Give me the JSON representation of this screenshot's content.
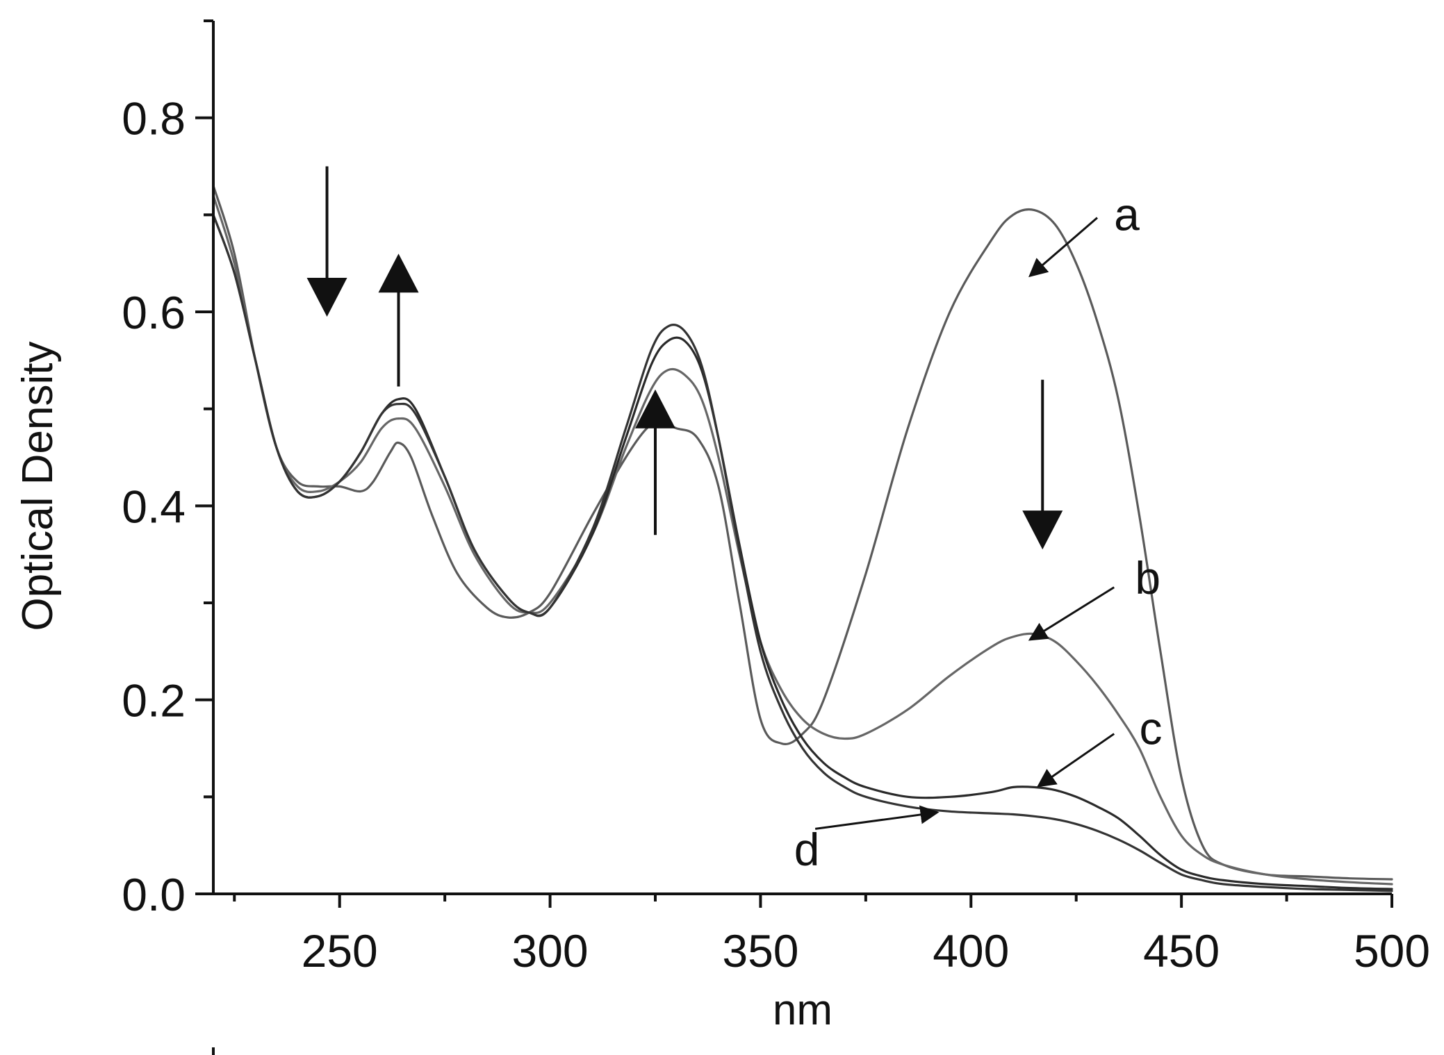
{
  "chart_data": {
    "type": "line",
    "title": "",
    "xlabel": "nm",
    "ylabel": "Optical Density",
    "xlim": [
      220,
      500
    ],
    "ylim": [
      0.0,
      0.9
    ],
    "x_ticks": [
      250,
      300,
      350,
      400,
      450,
      500
    ],
    "x_tick_labels": [
      "250",
      "300",
      "350",
      "400",
      "450",
      "500"
    ],
    "y_ticks": [
      0.0,
      0.2,
      0.4,
      0.6,
      0.8
    ],
    "y_tick_labels": [
      "0.0",
      "0.2",
      "0.4",
      "0.6",
      "0.8"
    ],
    "grid": false,
    "colors": {
      "axis": "#111111",
      "curve_dark": "#222222",
      "curve_mid": "#555555",
      "curve_light": "#6a6a6a"
    },
    "series": [
      {
        "name": "a",
        "label": "a",
        "color": "#5a5a5a",
        "points": [
          [
            220,
            0.73
          ],
          [
            225,
            0.66
          ],
          [
            230,
            0.55
          ],
          [
            235,
            0.46
          ],
          [
            240,
            0.425
          ],
          [
            245,
            0.42
          ],
          [
            250,
            0.42
          ],
          [
            255,
            0.415
          ],
          [
            258,
            0.425
          ],
          [
            262,
            0.455
          ],
          [
            264,
            0.465
          ],
          [
            267,
            0.45
          ],
          [
            272,
            0.39
          ],
          [
            278,
            0.33
          ],
          [
            285,
            0.295
          ],
          [
            290,
            0.285
          ],
          [
            295,
            0.29
          ],
          [
            300,
            0.31
          ],
          [
            310,
            0.39
          ],
          [
            318,
            0.45
          ],
          [
            323,
            0.48
          ],
          [
            326,
            0.485
          ],
          [
            330,
            0.48
          ],
          [
            335,
            0.47
          ],
          [
            340,
            0.42
          ],
          [
            345,
            0.3
          ],
          [
            350,
            0.18
          ],
          [
            355,
            0.155
          ],
          [
            360,
            0.165
          ],
          [
            365,
            0.2
          ],
          [
            375,
            0.33
          ],
          [
            385,
            0.48
          ],
          [
            395,
            0.6
          ],
          [
            405,
            0.675
          ],
          [
            410,
            0.7
          ],
          [
            415,
            0.705
          ],
          [
            420,
            0.69
          ],
          [
            425,
            0.65
          ],
          [
            430,
            0.59
          ],
          [
            435,
            0.51
          ],
          [
            440,
            0.39
          ],
          [
            445,
            0.25
          ],
          [
            450,
            0.12
          ],
          [
            455,
            0.05
          ],
          [
            460,
            0.03
          ],
          [
            470,
            0.02
          ],
          [
            480,
            0.018
          ],
          [
            490,
            0.016
          ],
          [
            500,
            0.015
          ]
        ],
        "label_anchor": [
          432,
          0.7
        ],
        "pointer_from": [
          430,
          0.697
        ],
        "pointer_to": [
          414,
          0.637
        ]
      },
      {
        "name": "b",
        "label": "b",
        "color": "#666666",
        "points": [
          [
            220,
            0.72
          ],
          [
            225,
            0.65
          ],
          [
            230,
            0.55
          ],
          [
            235,
            0.46
          ],
          [
            240,
            0.42
          ],
          [
            245,
            0.415
          ],
          [
            250,
            0.425
          ],
          [
            255,
            0.445
          ],
          [
            260,
            0.48
          ],
          [
            264,
            0.49
          ],
          [
            268,
            0.48
          ],
          [
            275,
            0.42
          ],
          [
            282,
            0.35
          ],
          [
            290,
            0.3
          ],
          [
            295,
            0.29
          ],
          [
            300,
            0.3
          ],
          [
            310,
            0.37
          ],
          [
            318,
            0.46
          ],
          [
            324,
            0.52
          ],
          [
            328,
            0.54
          ],
          [
            332,
            0.535
          ],
          [
            336,
            0.51
          ],
          [
            340,
            0.45
          ],
          [
            345,
            0.35
          ],
          [
            350,
            0.26
          ],
          [
            355,
            0.21
          ],
          [
            360,
            0.18
          ],
          [
            365,
            0.165
          ],
          [
            370,
            0.16
          ],
          [
            375,
            0.165
          ],
          [
            385,
            0.19
          ],
          [
            395,
            0.225
          ],
          [
            405,
            0.255
          ],
          [
            410,
            0.265
          ],
          [
            415,
            0.268
          ],
          [
            420,
            0.26
          ],
          [
            425,
            0.24
          ],
          [
            430,
            0.215
          ],
          [
            435,
            0.185
          ],
          [
            440,
            0.15
          ],
          [
            445,
            0.1
          ],
          [
            450,
            0.06
          ],
          [
            455,
            0.04
          ],
          [
            460,
            0.03
          ],
          [
            470,
            0.02
          ],
          [
            480,
            0.015
          ],
          [
            490,
            0.012
          ],
          [
            500,
            0.01
          ]
        ],
        "label_anchor": [
          437,
          0.325
        ],
        "pointer_from": [
          434,
          0.316
        ],
        "pointer_to": [
          414,
          0.262
        ]
      },
      {
        "name": "c",
        "label": "c",
        "color": "#2a2a2a",
        "points": [
          [
            220,
            0.7
          ],
          [
            225,
            0.64
          ],
          [
            230,
            0.55
          ],
          [
            235,
            0.46
          ],
          [
            240,
            0.415
          ],
          [
            245,
            0.41
          ],
          [
            250,
            0.425
          ],
          [
            255,
            0.455
          ],
          [
            260,
            0.495
          ],
          [
            264,
            0.51
          ],
          [
            268,
            0.5
          ],
          [
            275,
            0.43
          ],
          [
            282,
            0.355
          ],
          [
            290,
            0.305
          ],
          [
            295,
            0.29
          ],
          [
            300,
            0.295
          ],
          [
            310,
            0.37
          ],
          [
            318,
            0.47
          ],
          [
            324,
            0.545
          ],
          [
            328,
            0.57
          ],
          [
            332,
            0.57
          ],
          [
            336,
            0.54
          ],
          [
            340,
            0.47
          ],
          [
            345,
            0.36
          ],
          [
            350,
            0.26
          ],
          [
            355,
            0.2
          ],
          [
            360,
            0.16
          ],
          [
            365,
            0.135
          ],
          [
            370,
            0.12
          ],
          [
            375,
            0.11
          ],
          [
            385,
            0.1
          ],
          [
            395,
            0.1
          ],
          [
            405,
            0.105
          ],
          [
            410,
            0.11
          ],
          [
            415,
            0.11
          ],
          [
            420,
            0.107
          ],
          [
            425,
            0.1
          ],
          [
            430,
            0.09
          ],
          [
            435,
            0.078
          ],
          [
            440,
            0.06
          ],
          [
            445,
            0.04
          ],
          [
            450,
            0.025
          ],
          [
            455,
            0.018
          ],
          [
            460,
            0.014
          ],
          [
            470,
            0.01
          ],
          [
            480,
            0.008
          ],
          [
            490,
            0.006
          ],
          [
            500,
            0.005
          ]
        ],
        "label_anchor": [
          438,
          0.17
        ],
        "pointer_from": [
          434,
          0.165
        ],
        "pointer_to": [
          416,
          0.111
        ]
      },
      {
        "name": "d",
        "label": "d",
        "color": "#333333",
        "points": [
          [
            220,
            0.7
          ],
          [
            225,
            0.64
          ],
          [
            230,
            0.55
          ],
          [
            235,
            0.46
          ],
          [
            240,
            0.415
          ],
          [
            245,
            0.41
          ],
          [
            250,
            0.425
          ],
          [
            255,
            0.455
          ],
          [
            260,
            0.495
          ],
          [
            264,
            0.505
          ],
          [
            268,
            0.495
          ],
          [
            275,
            0.43
          ],
          [
            282,
            0.355
          ],
          [
            290,
            0.305
          ],
          [
            295,
            0.29
          ],
          [
            300,
            0.295
          ],
          [
            310,
            0.375
          ],
          [
            318,
            0.48
          ],
          [
            324,
            0.56
          ],
          [
            328,
            0.585
          ],
          [
            332,
            0.58
          ],
          [
            336,
            0.545
          ],
          [
            340,
            0.47
          ],
          [
            345,
            0.355
          ],
          [
            350,
            0.25
          ],
          [
            355,
            0.19
          ],
          [
            360,
            0.15
          ],
          [
            365,
            0.125
          ],
          [
            370,
            0.11
          ],
          [
            375,
            0.1
          ],
          [
            385,
            0.09
          ],
          [
            395,
            0.085
          ],
          [
            405,
            0.083
          ],
          [
            410,
            0.082
          ],
          [
            415,
            0.08
          ],
          [
            420,
            0.077
          ],
          [
            425,
            0.072
          ],
          [
            430,
            0.065
          ],
          [
            435,
            0.056
          ],
          [
            440,
            0.045
          ],
          [
            445,
            0.032
          ],
          [
            450,
            0.02
          ],
          [
            455,
            0.014
          ],
          [
            460,
            0.01
          ],
          [
            470,
            0.007
          ],
          [
            480,
            0.005
          ],
          [
            490,
            0.004
          ],
          [
            500,
            0.003
          ]
        ],
        "label_anchor": [
          356,
          0.045
        ],
        "pointer_from": [
          363,
          0.067
        ],
        "pointer_to": [
          392,
          0.084
        ]
      }
    ],
    "trend_arrows": [
      {
        "name": "down-arrow-250",
        "direction": "down",
        "x": 247,
        "y_from": 0.75,
        "y_to": 0.595
      },
      {
        "name": "up-arrow-265",
        "direction": "up",
        "x": 264,
        "y_from": 0.523,
        "y_to": 0.66
      },
      {
        "name": "up-arrow-325",
        "direction": "up",
        "x": 325,
        "y_from": 0.37,
        "y_to": 0.52
      },
      {
        "name": "down-arrow-415",
        "direction": "down",
        "x": 417,
        "y_from": 0.53,
        "y_to": 0.355
      }
    ]
  }
}
